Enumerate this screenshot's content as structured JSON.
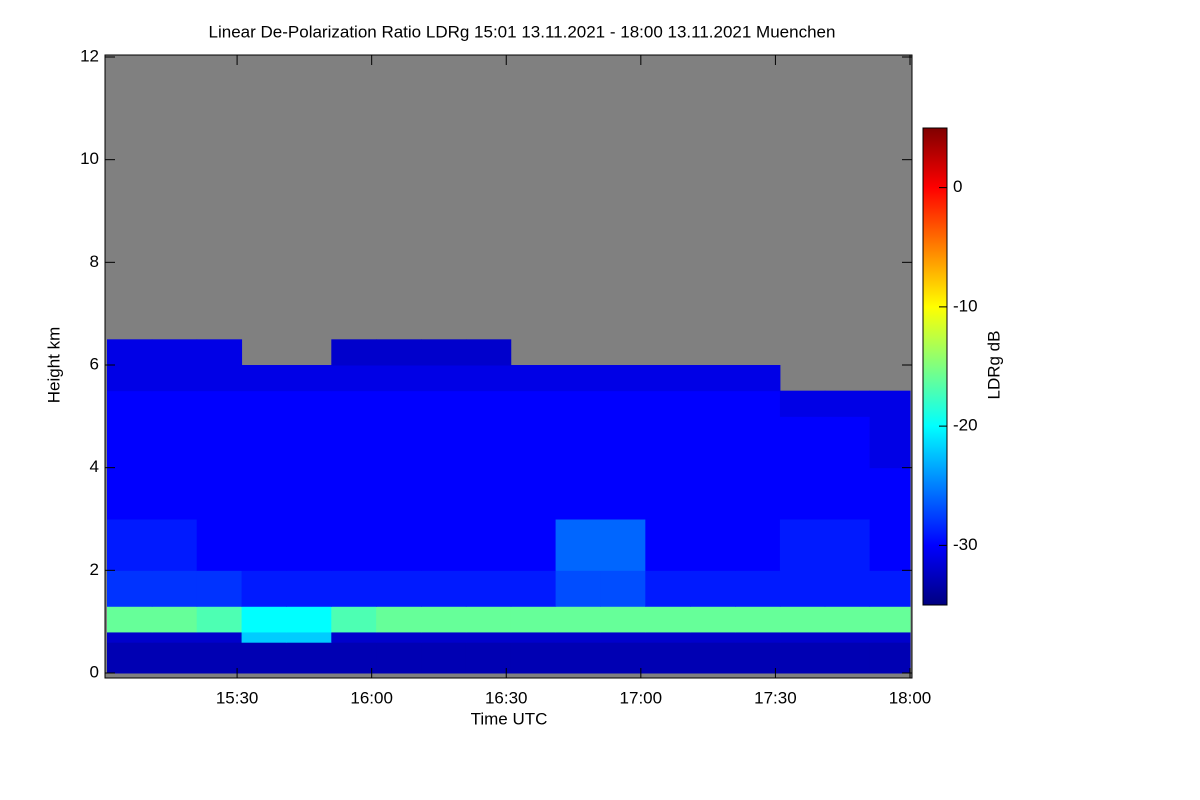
{
  "chart_data": {
    "type": "heatmap",
    "title": "Linear De-Polarization Ratio LDRg   15:01 13.11.2021 - 18:00 13.11.2021 Muenchen",
    "x_label": "Time UTC",
    "y_label": "Height km",
    "colorbar_label": "LDRg dB",
    "colormap": "jet",
    "missing_color": "#808080",
    "xlim": [
      15.0167,
      18.0
    ],
    "xticks": [
      {
        "value": 15.5,
        "label": "15:30"
      },
      {
        "value": 16.0,
        "label": "16:00"
      },
      {
        "value": 16.5,
        "label": "16:30"
      },
      {
        "value": 17.0,
        "label": "17:00"
      },
      {
        "value": 17.5,
        "label": "17:30"
      },
      {
        "value": 18.0,
        "label": "18:00"
      }
    ],
    "ylim": [
      0,
      12
    ],
    "yticks": [
      0,
      2,
      4,
      6,
      8,
      10,
      12
    ],
    "zlim": [
      -35,
      5
    ],
    "zticks": [
      0,
      -10,
      -20,
      -30
    ],
    "xbins": [
      15.0167,
      15.1833,
      15.35,
      15.5167,
      15.6833,
      15.85,
      16.0167,
      16.1833,
      16.35,
      16.5167,
      16.6833,
      16.85,
      17.0167,
      17.1833,
      17.35,
      17.5167,
      17.6833,
      17.85,
      18.0
    ],
    "ybins": [
      0,
      0.6,
      0.8,
      1.3,
      2,
      3,
      4,
      5,
      5.5,
      6,
      6.5,
      12
    ],
    "z": [
      [
        -33,
        -33,
        -33,
        -33,
        -33,
        -33,
        -33,
        -33,
        -33,
        -33,
        -33,
        -33,
        -33,
        -33,
        -33,
        -33,
        -33,
        -33
      ],
      [
        -32,
        -32,
        -32,
        -22,
        -22,
        -32,
        -32,
        -32,
        -32,
        -32,
        -32,
        -32,
        -32,
        -32,
        -32,
        -32,
        -32,
        -32
      ],
      [
        -16,
        -16,
        -17,
        -20,
        -20,
        -17,
        -16,
        -16,
        -16,
        -16,
        -16,
        -16,
        -16,
        -16,
        -16,
        -16,
        -16,
        -16
      ],
      [
        -28,
        -28,
        -28,
        -29,
        -29,
        -29,
        -29,
        -29,
        -29,
        -29,
        -27,
        -27,
        -29,
        -29,
        -29,
        -29,
        -29,
        -29
      ],
      [
        -29,
        -29,
        -30,
        -30,
        -30,
        -30,
        -30,
        -30,
        -30,
        -30,
        -26,
        -26,
        -30,
        -30,
        -30,
        -29,
        -29,
        -30
      ],
      [
        -30,
        -30,
        -30,
        -30,
        -30,
        -30,
        -30,
        -30,
        -30,
        -30,
        -30,
        -30,
        -30,
        -30,
        -30,
        -30,
        -30,
        -30
      ],
      [
        -30,
        -30,
        -30,
        -30,
        -30,
        -30,
        -30,
        -30,
        -30,
        -30,
        -30,
        -30,
        -30,
        -30,
        -30,
        -30,
        -30,
        -31
      ],
      [
        -30,
        -30,
        -30,
        -30,
        -30,
        -30,
        -30,
        -30,
        -30,
        -30,
        -30,
        -30,
        -30,
        -30,
        -30,
        -31,
        -31,
        -31
      ],
      [
        -31,
        -31,
        -31,
        -31,
        -31,
        -31,
        -31,
        -31,
        -31,
        -31,
        -31,
        -31,
        -31,
        -31,
        -31,
        null,
        null,
        null
      ],
      [
        -31,
        -31,
        -31,
        null,
        null,
        -32,
        -32,
        -32,
        -32,
        null,
        null,
        null,
        null,
        null,
        null,
        null,
        null,
        null
      ],
      [
        null,
        null,
        null,
        null,
        null,
        null,
        null,
        null,
        null,
        null,
        null,
        null,
        null,
        null,
        null,
        null,
        null,
        null
      ]
    ]
  }
}
